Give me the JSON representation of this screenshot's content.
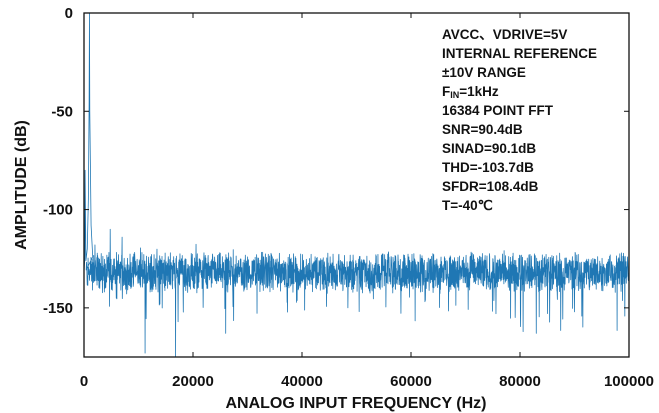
{
  "chart_data": {
    "type": "line",
    "title": "",
    "xlabel": "ANALOG INPUT FREQUENCY (Hz)",
    "ylabel": "AMPLITUDE (dB)",
    "xlim": [
      0,
      100000
    ],
    "ylim": [
      -175,
      0
    ],
    "x_ticks": [
      0,
      20000,
      40000,
      60000,
      80000,
      100000
    ],
    "x_tick_labels": [
      "0",
      "20000",
      "40000",
      "60000",
      "80000",
      "100000"
    ],
    "y_ticks": [
      0,
      -50,
      -100,
      -150
    ],
    "y_tick_labels": [
      "0",
      "-50",
      "-100",
      "-150"
    ],
    "grid": false,
    "legend": "none",
    "series": [
      {
        "color": "#1f77b4",
        "fundamental": {
          "x": 1000,
          "y": 0
        },
        "noise_floor_db": -132,
        "peaks": [
          {
            "x": 200,
            "y": -80
          },
          {
            "x": 2000,
            "y": -118
          },
          {
            "x": 4800,
            "y": -110
          },
          {
            "x": 7000,
            "y": -114
          },
          {
            "x": 11200,
            "y": -173
          },
          {
            "x": 16800,
            "y": -175
          },
          {
            "x": 26000,
            "y": -163
          },
          {
            "x": 83000,
            "y": -163
          }
        ]
      }
    ],
    "annotations": [
      {
        "text": "AVCC、VDRIVE=5V"
      },
      {
        "text": "INTERNAL REFERENCE"
      },
      {
        "text": "±10V RANGE"
      },
      {
        "text_main": "F",
        "text_sub": "IN",
        "text_tail": "=1kHz"
      },
      {
        "text": "16384 POINT FFT"
      },
      {
        "text": "SNR=90.4dB"
      },
      {
        "text": "SINAD=90.1dB"
      },
      {
        "text": "THD=-103.7dB"
      },
      {
        "text": "SFDR=108.4dB"
      },
      {
        "text": "T=-40℃"
      }
    ]
  }
}
